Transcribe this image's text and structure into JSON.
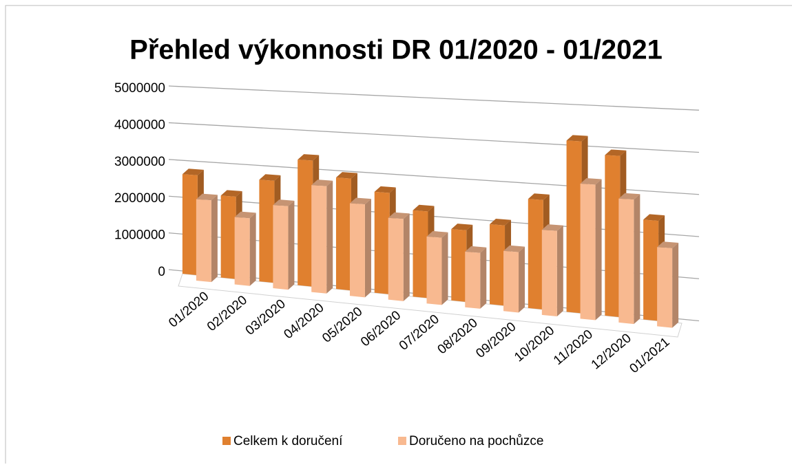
{
  "chart_data": {
    "type": "bar3d",
    "title": "Přehled výkonnosti DR 01/2020 - 01/2021",
    "categories": [
      "01/2020",
      "02/2020",
      "03/2020",
      "04/2020",
      "05/2020",
      "06/2020",
      "07/2020",
      "08/2020",
      "09/2020",
      "10/2020",
      "11/2020",
      "12/2020",
      "01/2021"
    ],
    "series": [
      {
        "name": "Celkem k doručení",
        "color": "#e0802f",
        "values": [
          2700000,
          2200000,
          2700000,
          3300000,
          2900000,
          2600000,
          2200000,
          1800000,
          2000000,
          2700000,
          4200000,
          3900000,
          2400000
        ]
      },
      {
        "name": "Doručeno na pochůzce",
        "color": "#f8b990",
        "values": [
          2200000,
          1800000,
          2200000,
          2800000,
          2400000,
          2100000,
          1700000,
          1400000,
          1500000,
          2100000,
          3300000,
          3000000,
          1900000
        ]
      }
    ],
    "ylim": [
      0,
      5000000
    ],
    "yticks": [
      0,
      1000000,
      2000000,
      3000000,
      4000000,
      5000000
    ],
    "grid": true,
    "legend": "bottom"
  }
}
